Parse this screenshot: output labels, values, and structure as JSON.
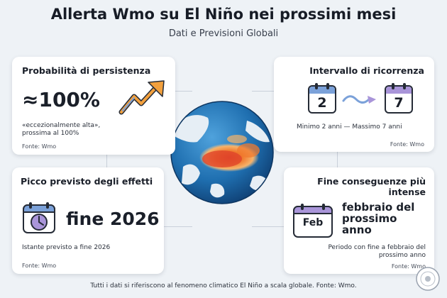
{
  "header": {
    "title": "Allerta Wmo su El Niño nei prossimi mesi",
    "subtitle": "Dati e Previsioni Globali"
  },
  "cards": {
    "persistence": {
      "title": "Probabilità di persistenza",
      "value": "≈100%",
      "note_line1": "«eccezionalmente alta»,",
      "note_line2": "prossima al 100%",
      "source": "Fonte: Wmo"
    },
    "recurrence": {
      "title": "Intervallo di ricorrenza",
      "min_value": "2",
      "max_value": "7",
      "note": "Minimo 2 anni — Massimo 7 anni",
      "source": "Fonte: Wmo"
    },
    "peak": {
      "title": "Picco previsto degli effetti",
      "value": "fine 2026",
      "note": "Istante previsto a fine 2026",
      "source": "Fonte: Wmo"
    },
    "end": {
      "title_line1": "Fine conseguenze più",
      "title_line2": "intense",
      "calendar_label": "Feb",
      "value_line1": "febbraio del",
      "value_line2": "prossimo",
      "value_line3": "anno",
      "note_line1": "Periodo con fine a febbraio del",
      "note_line2": "prossimo anno",
      "source": "Fonte: Wmo"
    }
  },
  "footer": {
    "text": "Tutti i dati si riferiscono al fenomeno climatico El Niño a scala globale. Fonte: Wmo."
  },
  "colors": {
    "background": "#eef2f6",
    "card": "#ffffff",
    "arrow_orange": "#f2a03d",
    "arrow_blue": "#7ba1d9",
    "calendar_purple": "#a995d9",
    "ocean": "#1f6fb0",
    "anomaly": "#f07a2e"
  }
}
